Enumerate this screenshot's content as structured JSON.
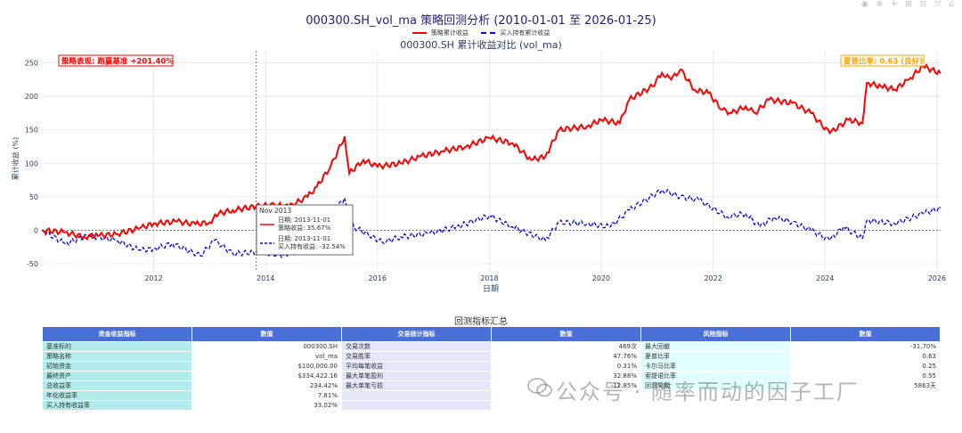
{
  "title": "000300.SH_vol_ma 策略回测分析 (2010-01-01 至 2026-01-25)",
  "modebar_icons": [
    "camera-icon",
    "zoom-icon",
    "pan-icon",
    "zoom-in-icon",
    "zoom-out-icon",
    "autoscale-icon",
    "reset-icon"
  ],
  "modebar_text": "◉ ⊕ ✛ ⊞ ⊟ ⤧ ⌂",
  "chart_data": {
    "type": "line",
    "title": "000300.SH 累计收益对比 (vol_ma)",
    "xlabel": "日期",
    "ylabel": "累计收益 (%)",
    "xlim": [
      "2010-01-01",
      "2026-01-25"
    ],
    "ylim": [
      -62,
      268
    ],
    "x_ticks": [
      "2012",
      "2014",
      "2016",
      "2018",
      "2020",
      "2022",
      "2024",
      "2026"
    ],
    "y_ticks": [
      -50,
      0,
      50,
      100,
      150,
      200,
      250
    ],
    "grid": true,
    "legend_position": "top-center",
    "zero_line": 0,
    "hover_date": "2013-11-01",
    "series": [
      {
        "name": "策略累计收益",
        "color": "#ff0000",
        "dash": "solid",
        "points": [
          [
            "2010-01-01",
            0
          ],
          [
            "2010-06-01",
            -3
          ],
          [
            "2010-10-01",
            -10
          ],
          [
            "2011-01-01",
            -8
          ],
          [
            "2011-05-01",
            -6
          ],
          [
            "2011-10-01",
            3
          ],
          [
            "2012-01-01",
            10
          ],
          [
            "2012-06-01",
            13
          ],
          [
            "2012-10-01",
            9
          ],
          [
            "2013-01-01",
            12
          ],
          [
            "2013-03-01",
            25
          ],
          [
            "2013-06-01",
            30
          ],
          [
            "2013-11-01",
            35.67
          ],
          [
            "2014-03-01",
            38
          ],
          [
            "2014-06-01",
            35
          ],
          [
            "2014-10-01",
            50
          ],
          [
            "2014-12-01",
            65
          ],
          [
            "2015-03-01",
            95
          ],
          [
            "2015-06-01",
            140
          ],
          [
            "2015-07-01",
            85
          ],
          [
            "2015-10-01",
            105
          ],
          [
            "2016-01-01",
            95
          ],
          [
            "2016-06-01",
            100
          ],
          [
            "2016-10-01",
            110
          ],
          [
            "2017-03-01",
            118
          ],
          [
            "2017-08-01",
            125
          ],
          [
            "2018-01-01",
            138
          ],
          [
            "2018-06-01",
            130
          ],
          [
            "2018-10-01",
            105
          ],
          [
            "2019-01-01",
            110
          ],
          [
            "2019-04-01",
            150
          ],
          [
            "2019-10-01",
            155
          ],
          [
            "2020-01-01",
            165
          ],
          [
            "2020-05-01",
            160
          ],
          [
            "2020-07-01",
            195
          ],
          [
            "2020-12-01",
            215
          ],
          [
            "2021-02-01",
            235
          ],
          [
            "2021-04-01",
            225
          ],
          [
            "2021-06-01",
            240
          ],
          [
            "2021-09-01",
            210
          ],
          [
            "2021-12-01",
            205
          ],
          [
            "2022-03-01",
            180
          ],
          [
            "2022-05-01",
            175
          ],
          [
            "2022-08-01",
            185
          ],
          [
            "2022-10-01",
            175
          ],
          [
            "2023-01-01",
            195
          ],
          [
            "2023-06-01",
            190
          ],
          [
            "2023-10-01",
            175
          ],
          [
            "2024-02-01",
            145
          ],
          [
            "2024-06-01",
            165
          ],
          [
            "2024-09-01",
            160
          ],
          [
            "2024-10-01",
            220
          ],
          [
            "2025-01-01",
            215
          ],
          [
            "2025-04-01",
            210
          ],
          [
            "2025-07-01",
            225
          ],
          [
            "2025-10-01",
            245
          ],
          [
            "2026-01-25",
            234.4
          ]
        ]
      },
      {
        "name": "买入持有累计收益",
        "color": "#0000ff",
        "dash": "dashed",
        "points": [
          [
            "2010-01-01",
            0
          ],
          [
            "2010-06-01",
            -20
          ],
          [
            "2010-11-01",
            -8
          ],
          [
            "2011-05-01",
            -15
          ],
          [
            "2011-10-01",
            -30
          ],
          [
            "2012-01-01",
            -28
          ],
          [
            "2012-05-01",
            -20
          ],
          [
            "2012-11-01",
            -38
          ],
          [
            "2013-02-01",
            -15
          ],
          [
            "2013-06-01",
            -35
          ],
          [
            "2013-11-01",
            -32.54
          ],
          [
            "2014-06-01",
            -38
          ],
          [
            "2014-10-01",
            -20
          ],
          [
            "2015-01-01",
            5
          ],
          [
            "2015-06-01",
            48
          ],
          [
            "2015-08-01",
            5
          ],
          [
            "2016-02-01",
            -18
          ],
          [
            "2016-06-01",
            -10
          ],
          [
            "2016-12-01",
            -5
          ],
          [
            "2017-06-01",
            5
          ],
          [
            "2018-01-01",
            22
          ],
          [
            "2018-06-01",
            5
          ],
          [
            "2019-01-01",
            -15
          ],
          [
            "2019-04-01",
            12
          ],
          [
            "2019-10-01",
            10
          ],
          [
            "2020-03-01",
            5
          ],
          [
            "2020-07-01",
            30
          ],
          [
            "2021-02-01",
            60
          ],
          [
            "2021-06-01",
            50
          ],
          [
            "2021-10-01",
            45
          ],
          [
            "2022-04-01",
            20
          ],
          [
            "2022-08-01",
            25
          ],
          [
            "2022-11-01",
            5
          ],
          [
            "2023-02-01",
            20
          ],
          [
            "2023-06-01",
            12
          ],
          [
            "2023-10-01",
            0
          ],
          [
            "2024-02-01",
            -15
          ],
          [
            "2024-05-01",
            5
          ],
          [
            "2024-09-01",
            -12
          ],
          [
            "2024-10-01",
            15
          ],
          [
            "2025-04-01",
            10
          ],
          [
            "2025-10-01",
            25
          ],
          [
            "2026-01-25",
            33.02
          ]
        ]
      }
    ],
    "annotations": {
      "left": "策略表现: 跑赢基准 +201.40%",
      "right": "夏普比率: 0.63 (良好)"
    },
    "tooltip": {
      "header": "Nov 2013",
      "line1": "日期: 2013-11-01",
      "line2": "策略收益: 35.67%",
      "line3": "日期: 2013-11-01",
      "line4": "买入持有收益: -32.54%"
    }
  },
  "table": {
    "title": "回测指标汇总",
    "headers": [
      "资金收益指标",
      "数值",
      "交易统计指标",
      "数值",
      "风险指标",
      "数值"
    ],
    "rows": [
      [
        "基准标的",
        "000300.SH",
        "交易次数",
        "469次",
        "最大回撤",
        "-31.70%"
      ],
      [
        "策略名称",
        "vol_ma",
        "交易胜率",
        "47.76%",
        "夏普比率",
        "0.63"
      ],
      [
        "初始资金",
        "$100,000.00",
        "平均每笔收益",
        "0.31%",
        "卡尔马比率",
        "0.25"
      ],
      [
        "最终资产",
        "$334,422.16",
        "最大单笔盈利",
        "32.88%",
        "索提诺比率",
        "0.55"
      ],
      [
        "总收益率",
        "234.42%",
        "最大单笔亏损",
        "-12.85%",
        "回测周期",
        "5863天"
      ],
      [
        "年化收益率",
        "7.81%",
        "",
        "",
        "",
        ""
      ],
      [
        "买入持有收益率",
        "33.02%",
        "",
        "",
        "",
        ""
      ]
    ]
  },
  "watermark": "公众号 · 随率而动的因子工厂"
}
